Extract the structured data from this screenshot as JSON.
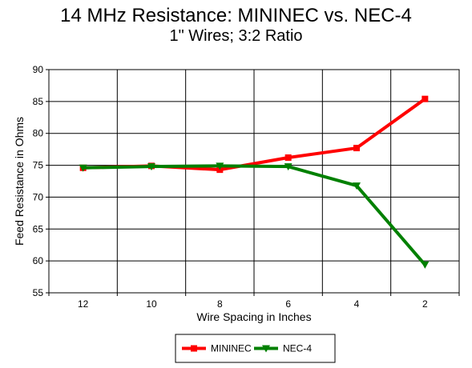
{
  "chart_data": {
    "type": "line",
    "title": "14 MHz Resistance:  MININEC vs. NEC-4",
    "subtitle": "1\" Wires; 3:2 Ratio",
    "xlabel": "Wire Spacing in Inches",
    "ylabel": "Feed Resistance in Ohms",
    "categories": [
      "12",
      "10",
      "8",
      "6",
      "4",
      "2"
    ],
    "ylim": [
      55,
      90
    ],
    "yticks": [
      55,
      60,
      65,
      70,
      75,
      80,
      85,
      90
    ],
    "grid": true,
    "legend": "bottom",
    "series": [
      {
        "name": "MININEC",
        "color": "#ff0000",
        "marker": "square",
        "values": [
          74.6,
          74.9,
          74.3,
          76.2,
          77.7,
          85.4
        ]
      },
      {
        "name": "NEC-4",
        "color": "#008000",
        "marker": "triangle-down",
        "values": [
          74.6,
          74.8,
          74.9,
          74.8,
          71.8,
          59.4
        ]
      }
    ]
  }
}
